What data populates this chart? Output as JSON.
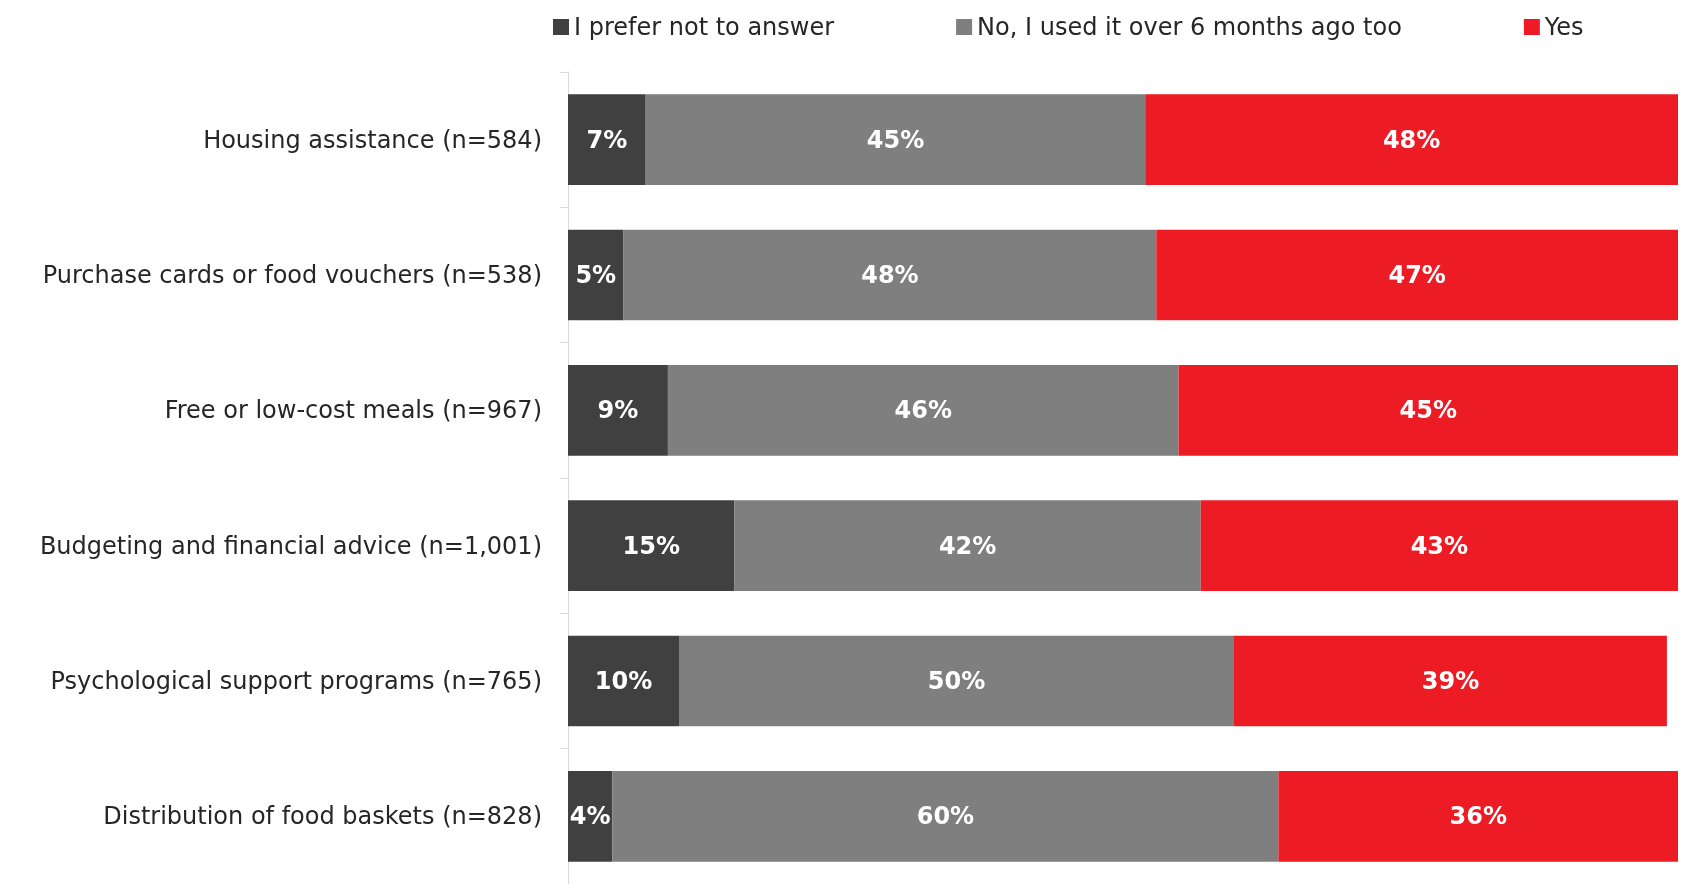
{
  "chart_data": {
    "type": "bar",
    "orientation": "horizontal",
    "stacked": true,
    "legend": "top",
    "tick_labels": "y",
    "categories": [
      "Housing assistance (n=584)",
      "Purchase cards or food vouchers (n=538)",
      "Free or low-cost meals (n=967)",
      "Budgeting and financial advice (n=1,001)",
      "Psychological support programs (n=765)",
      "Distribution of food baskets (n=828)"
    ],
    "series": [
      {
        "name": "I prefer not to answer",
        "color": "#404040",
        "values": [
          7,
          5,
          9,
          15,
          10,
          4
        ],
        "value_labels": [
          "7%",
          "5%",
          "9%",
          "15%",
          "10%",
          "4%"
        ]
      },
      {
        "name": "No, I used it over 6 months ago too",
        "color": "#7f7f7f",
        "values": [
          45,
          48,
          46,
          42,
          50,
          60
        ],
        "value_labels": [
          "45%",
          "48%",
          "46%",
          "42%",
          "50%",
          "60%"
        ]
      },
      {
        "name": "Yes",
        "color": "#ed1c24",
        "values": [
          48,
          47,
          45,
          43,
          39,
          36
        ],
        "value_labels": [
          "48%",
          "47%",
          "45%",
          "43%",
          "39%",
          "36%"
        ]
      }
    ]
  }
}
